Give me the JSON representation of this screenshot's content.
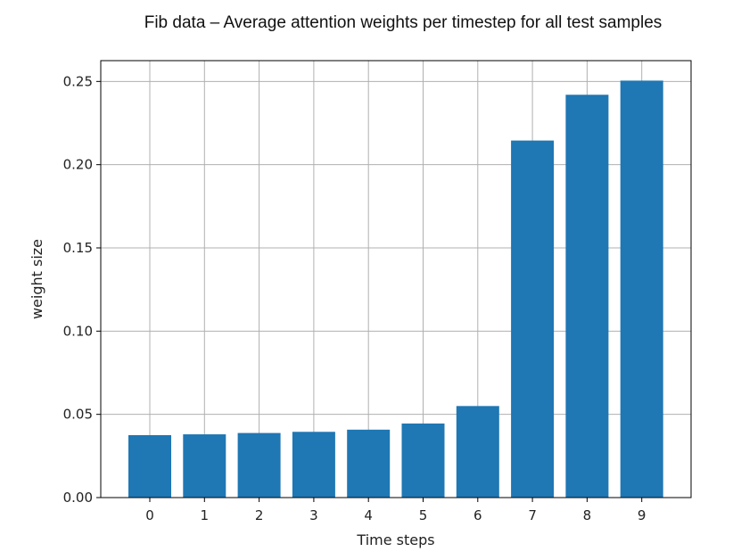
{
  "chart_data": {
    "type": "bar",
    "title": "Fib data – Average attention weights per timestep for all test samples",
    "xlabel": "Time steps",
    "ylabel": "weight size",
    "categories": [
      "0",
      "1",
      "2",
      "3",
      "4",
      "5",
      "6",
      "7",
      "8",
      "9"
    ],
    "values": [
      0.0375,
      0.038,
      0.0388,
      0.0395,
      0.0408,
      0.0445,
      0.055,
      0.2145,
      0.242,
      0.2505
    ],
    "ylim": [
      0,
      0.2625
    ],
    "yticks": [
      0.0,
      0.05,
      0.1,
      0.15,
      0.2,
      0.25
    ],
    "ytick_labels": [
      "0.00",
      "0.05",
      "0.10",
      "0.15",
      "0.20",
      "0.25"
    ],
    "grid": true,
    "bar_color": "#1f77b4"
  }
}
